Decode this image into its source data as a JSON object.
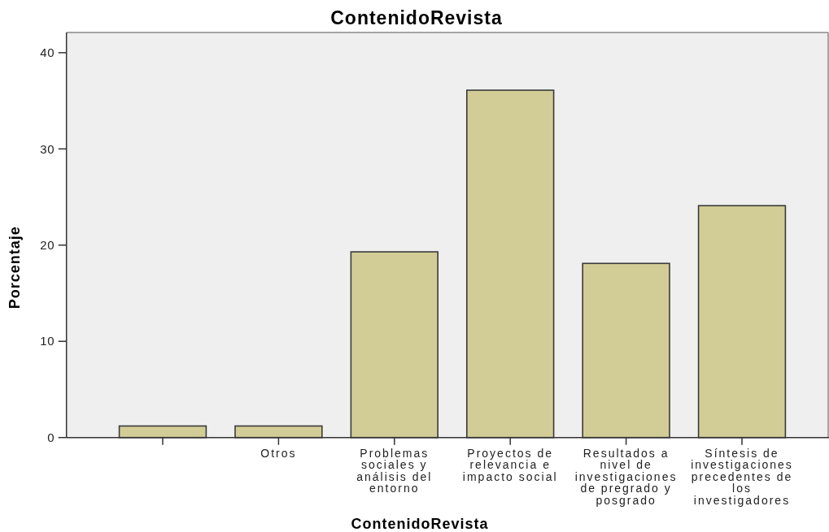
{
  "chart_data": {
    "type": "bar",
    "title": "ContenidoRevista",
    "xlabel": "ContenidoRevista",
    "ylabel": "Porcentaje",
    "categories": [
      null,
      "Otros",
      "Problemas sociales y análisis del entorno",
      "Proyectos de relevancia e impacto social",
      "Resultados a nivel de investigaciones de pregrado y posgrado",
      "Síntesis de investigaciones precedentes de los investigadores"
    ],
    "values": [
      1.2,
      1.2,
      19.3,
      36.1,
      18.1,
      24.1
    ],
    "color": "#d2cd96",
    "ylim": [
      0,
      42.1
    ],
    "yticks": [
      0,
      10,
      20,
      30,
      40
    ]
  }
}
